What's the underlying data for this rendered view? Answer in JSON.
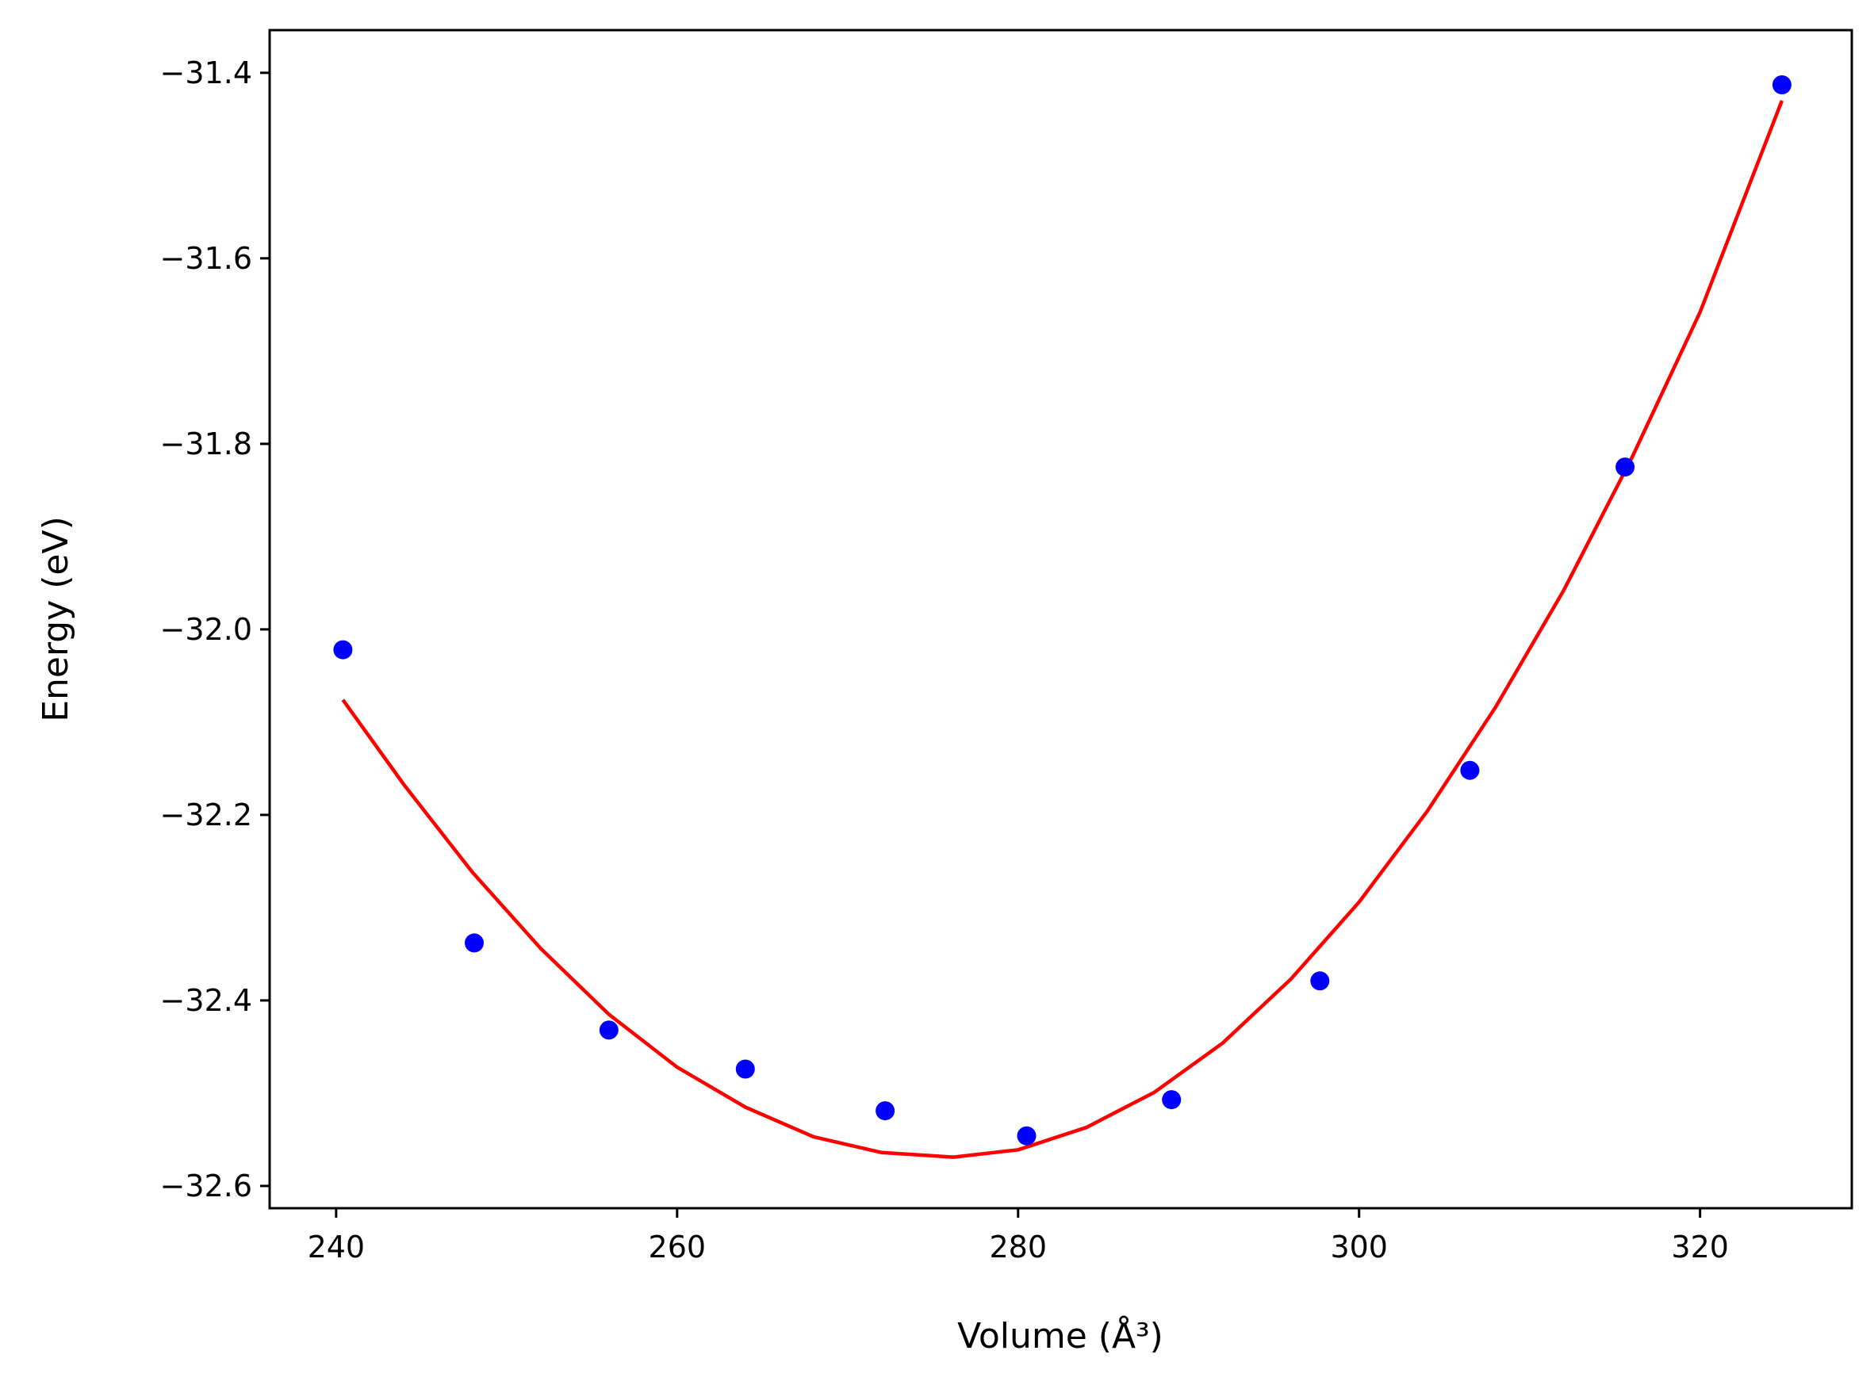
{
  "chart_data": {
    "type": "scatter",
    "xlabel": "Volume (Å³)",
    "ylabel": "Energy (eV)",
    "xlim": [
      236.1,
      328.9
    ],
    "ylim": [
      -32.624,
      -31.354
    ],
    "xticks": [
      240,
      260,
      280,
      300,
      320
    ],
    "yticks": [
      -31.4,
      -31.6,
      -31.8,
      -32.0,
      -32.2,
      -32.4,
      -32.6
    ],
    "xtick_labels": [
      "240",
      "260",
      "280",
      "300",
      "320"
    ],
    "ytick_labels": [
      "−31.4",
      "−31.6",
      "−31.8",
      "−32.0",
      "−32.2",
      "−32.4",
      "−32.6"
    ],
    "grid": false,
    "series": [
      {
        "kind": "points",
        "color": "#0000ff",
        "x": [
          240.4,
          248.1,
          256.0,
          264.0,
          272.2,
          280.5,
          289.0,
          297.7,
          306.5,
          315.6,
          324.8
        ],
        "y": [
          -32.022,
          -32.338,
          -32.432,
          -32.474,
          -32.519,
          -32.546,
          -32.507,
          -32.379,
          -32.152,
          -31.825,
          -31.413
        ]
      },
      {
        "kind": "line",
        "color": "#ff0000",
        "x": [
          240.4,
          244,
          248,
          252,
          256,
          260,
          264,
          268,
          272,
          276.2,
          280,
          284,
          288,
          292,
          296,
          300,
          304,
          308,
          312,
          316,
          320,
          324.8
        ],
        "y": [
          -32.076,
          -32.168,
          -32.262,
          -32.344,
          -32.415,
          -32.472,
          -32.515,
          -32.547,
          -32.564,
          -32.569,
          -32.561,
          -32.537,
          -32.499,
          -32.446,
          -32.377,
          -32.294,
          -32.196,
          -32.084,
          -31.958,
          -31.815,
          -31.658,
          -31.43
        ]
      }
    ]
  }
}
